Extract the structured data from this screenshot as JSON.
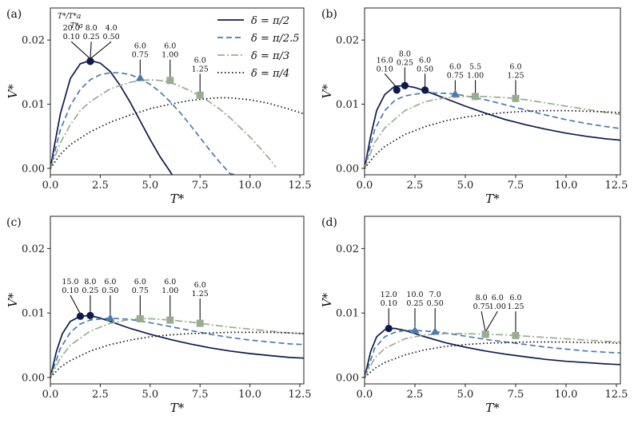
{
  "figure": {
    "legend": {
      "entries": [
        "δ = π/2",
        "δ = π/2.5",
        "δ = π/3",
        "δ = π/4"
      ],
      "key_line1": "T*/T*a",
      "key_line2": "T*a"
    }
  },
  "series_styles": [
    {
      "name": "δ = π/2",
      "color": "#0d1b4b",
      "dash": "",
      "marker": "circle"
    },
    {
      "name": "δ = π/2.5",
      "color": "#4a7bab",
      "dash": "7,4",
      "marker": "triangle"
    },
    {
      "name": "δ = π/3",
      "color": "#98ad8f",
      "dash": "9,3,2,3",
      "marker": "square"
    },
    {
      "name": "δ = π/4",
      "color": "#111111",
      "dash": "1.5,3",
      "marker": "none"
    }
  ],
  "chart_data": [
    {
      "type": "line",
      "panel_label": "(a)",
      "xlabel": "T*",
      "ylabel": "V*",
      "xlim": [
        0,
        12.7
      ],
      "ylim": [
        -0.001,
        0.025
      ],
      "xticks": [
        "0.0",
        "2.5",
        "5.0",
        "7.5",
        "10.0",
        "12.5"
      ],
      "yticks": [
        "0.00",
        "0.01",
        "0.02"
      ],
      "series": [
        {
          "name": "δ = π/2",
          "x": [
            0,
            0.2,
            0.5,
            1.0,
            1.5,
            2.0,
            2.5,
            3.0,
            3.5,
            4.0,
            4.5,
            5.0,
            5.5,
            6.0,
            6.1
          ],
          "y": [
            0,
            0.0035,
            0.0085,
            0.014,
            0.0163,
            0.0168,
            0.0164,
            0.0151,
            0.0129,
            0.0103,
            0.0074,
            0.0045,
            0.0018,
            -0.0005,
            -0.001
          ]
        },
        {
          "name": "δ = π/2.5",
          "x": [
            0,
            0.5,
            1.0,
            1.5,
            2.0,
            2.5,
            3.0,
            3.5,
            4.0,
            4.5,
            5.0,
            5.5,
            6.0,
            6.5,
            7.0,
            7.5,
            8.0,
            8.5,
            9.0,
            9.3
          ],
          "y": [
            0,
            0.006,
            0.0098,
            0.0123,
            0.0138,
            0.0146,
            0.0149,
            0.0149,
            0.0146,
            0.014,
            0.0131,
            0.0119,
            0.0104,
            0.0087,
            0.0068,
            0.0048,
            0.0028,
            0.0009,
            -0.0008,
            -0.001
          ]
        },
        {
          "name": "δ = π/3",
          "x": [
            0,
            0.5,
            1.0,
            1.5,
            2.0,
            3.0,
            4.0,
            4.5,
            5.0,
            5.5,
            6.0,
            6.5,
            7.0,
            7.5,
            8.0,
            8.5,
            9.0,
            9.5,
            10.0,
            10.5,
            11.0,
            11.3
          ],
          "y": [
            0,
            0.004,
            0.0068,
            0.009,
            0.0104,
            0.0124,
            0.0134,
            0.0137,
            0.0138,
            0.0137,
            0.0134,
            0.0128,
            0.0121,
            0.0113,
            0.0103,
            0.0092,
            0.0079,
            0.0064,
            0.0049,
            0.0032,
            0.0014,
            0.0002
          ]
        },
        {
          "name": "δ = π/4",
          "x": [
            0,
            0.5,
            1.0,
            2.0,
            3.0,
            4.0,
            5.0,
            6.0,
            7.0,
            8.0,
            8.5,
            9.0,
            10.0,
            11.0,
            12.0,
            12.7
          ],
          "y": [
            0,
            0.0022,
            0.0037,
            0.0057,
            0.0072,
            0.0083,
            0.0093,
            0.01,
            0.0106,
            0.0109,
            0.011,
            0.011,
            0.0107,
            0.0101,
            0.0092,
            0.0085
          ]
        }
      ],
      "markers": [
        {
          "series": 0,
          "x": 2.0,
          "y": 0.0167,
          "label1": "20.0",
          "label2": "0.10",
          "lx": 1.05,
          "ly": 0.02
        },
        {
          "series": 0,
          "x": 2.0,
          "y": 0.0167,
          "label1": "8.0",
          "label2": "0.25",
          "lx": 2.05,
          "ly": 0.02
        },
        {
          "series": 0,
          "x": 2.0,
          "y": 0.0167,
          "label1": "4.0",
          "label2": "0.50",
          "lx": 3.05,
          "ly": 0.02
        },
        {
          "series": 1,
          "x": 4.5,
          "y": 0.0141,
          "label1": "6.0",
          "label2": "0.75",
          "lx": 4.5,
          "ly": 0.0172
        },
        {
          "series": 2,
          "x": 6.0,
          "y": 0.0137,
          "label1": "6.0",
          "label2": "1.00",
          "lx": 6.0,
          "ly": 0.0172
        },
        {
          "series": 2,
          "x": 7.5,
          "y": 0.0114,
          "label1": "6.0",
          "label2": "1.25",
          "lx": 7.5,
          "ly": 0.015
        }
      ]
    },
    {
      "type": "line",
      "panel_label": "(b)",
      "xlabel": "T*",
      "ylabel": "V*",
      "xlim": [
        0,
        12.7
      ],
      "ylim": [
        -0.001,
        0.025
      ],
      "xticks": [
        "0.0",
        "2.5",
        "5.0",
        "7.5",
        "10.0",
        "12.5"
      ],
      "yticks": [
        "0.00",
        "0.01",
        "0.02"
      ],
      "series": [
        {
          "name": "δ = π/2",
          "x": [
            0,
            0.3,
            0.6,
            1.0,
            1.5,
            2.0,
            2.5,
            3.0,
            4.0,
            5.0,
            6.0,
            7.0,
            8.0,
            9.0,
            10.0,
            11.0,
            12.0,
            12.7
          ],
          "y": [
            0,
            0.005,
            0.009,
            0.0115,
            0.0128,
            0.0129,
            0.0126,
            0.0121,
            0.0109,
            0.0097,
            0.0086,
            0.0076,
            0.0068,
            0.0061,
            0.0055,
            0.005,
            0.0046,
            0.0044
          ]
        },
        {
          "name": "δ = π/2.5",
          "x": [
            0,
            0.5,
            1.0,
            1.5,
            2.0,
            3.0,
            4.0,
            4.5,
            5.0,
            6.0,
            7.0,
            8.0,
            9.0,
            10.0,
            11.0,
            12.0,
            12.7
          ],
          "y": [
            0,
            0.006,
            0.009,
            0.0106,
            0.0113,
            0.0118,
            0.0117,
            0.0116,
            0.0113,
            0.0107,
            0.0099,
            0.0091,
            0.0083,
            0.0076,
            0.007,
            0.0065,
            0.0062
          ]
        },
        {
          "name": "δ = π/3",
          "x": [
            0,
            0.5,
            1.0,
            2.0,
            3.0,
            4.0,
            5.0,
            5.5,
            6.0,
            7.0,
            7.5,
            8.0,
            9.0,
            10.0,
            11.0,
            12.0,
            12.7
          ],
          "y": [
            0,
            0.004,
            0.0063,
            0.009,
            0.0104,
            0.011,
            0.0112,
            0.0112,
            0.0112,
            0.011,
            0.0109,
            0.0107,
            0.0102,
            0.0097,
            0.0092,
            0.0087,
            0.0084
          ]
        },
        {
          "name": "δ = π/4",
          "x": [
            0,
            0.5,
            1.0,
            2.0,
            3.0,
            4.0,
            5.0,
            6.0,
            7.0,
            8.0,
            9.0,
            10.0,
            11.0,
            12.0,
            12.7
          ],
          "y": [
            0,
            0.002,
            0.0034,
            0.0053,
            0.0065,
            0.0074,
            0.008,
            0.0084,
            0.0087,
            0.0089,
            0.009,
            0.009,
            0.0089,
            0.0088,
            0.0087
          ]
        }
      ],
      "markers": [
        {
          "series": 0,
          "x": 1.6,
          "y": 0.0122,
          "label1": "16.0",
          "label2": "0.10",
          "lx": 1.0,
          "ly": 0.015
        },
        {
          "series": 0,
          "x": 2.0,
          "y": 0.0129,
          "label1": "8.0",
          "label2": "0.25",
          "lx": 2.0,
          "ly": 0.016
        },
        {
          "series": 0,
          "x": 3.0,
          "y": 0.0122,
          "label1": "6.0",
          "label2": "0.50",
          "lx": 3.0,
          "ly": 0.015
        },
        {
          "series": 1,
          "x": 4.5,
          "y": 0.0116,
          "label1": "6.0",
          "label2": "0.75",
          "lx": 4.5,
          "ly": 0.014
        },
        {
          "series": 2,
          "x": 5.5,
          "y": 0.0112,
          "label1": "5.5",
          "label2": "1.00",
          "lx": 5.5,
          "ly": 0.014
        },
        {
          "series": 2,
          "x": 7.5,
          "y": 0.0109,
          "label1": "6.0",
          "label2": "1.25",
          "lx": 7.5,
          "ly": 0.014
        }
      ]
    },
    {
      "type": "line",
      "panel_label": "(c)",
      "xlabel": "T*",
      "ylabel": "V*",
      "xlim": [
        0,
        12.7
      ],
      "ylim": [
        -0.001,
        0.025
      ],
      "xticks": [
        "0.0",
        "2.5",
        "5.0",
        "7.5",
        "10.0",
        "12.5"
      ],
      "yticks": [
        "0.00",
        "0.01",
        "0.02"
      ],
      "series": [
        {
          "name": "δ = π/2",
          "x": [
            0,
            0.3,
            0.6,
            1.0,
            1.5,
            2.0,
            2.5,
            3.0,
            4.0,
            5.0,
            6.0,
            7.0,
            8.0,
            9.0,
            10.0,
            11.0,
            12.0,
            12.7
          ],
          "y": [
            0,
            0.004,
            0.0068,
            0.0087,
            0.0095,
            0.0096,
            0.0092,
            0.0087,
            0.0076,
            0.0067,
            0.0059,
            0.0052,
            0.0046,
            0.0041,
            0.0037,
            0.0034,
            0.0031,
            0.003
          ]
        },
        {
          "name": "δ = π/2.5",
          "x": [
            0,
            0.5,
            1.0,
            1.5,
            2.0,
            3.0,
            4.0,
            5.0,
            6.0,
            7.0,
            8.0,
            9.0,
            10.0,
            11.0,
            12.0,
            12.7
          ],
          "y": [
            0,
            0.0045,
            0.007,
            0.0083,
            0.0089,
            0.0092,
            0.009,
            0.0085,
            0.0079,
            0.0073,
            0.0067,
            0.0062,
            0.0058,
            0.0055,
            0.0052,
            0.0051
          ]
        },
        {
          "name": "δ = π/3",
          "x": [
            0,
            0.5,
            1.0,
            2.0,
            3.0,
            4.0,
            4.5,
            5.0,
            6.0,
            7.0,
            7.5,
            8.0,
            9.0,
            10.0,
            11.0,
            12.0,
            12.7
          ],
          "y": [
            0,
            0.003,
            0.005,
            0.0072,
            0.0084,
            0.009,
            0.0091,
            0.0091,
            0.0089,
            0.0086,
            0.0084,
            0.0082,
            0.0078,
            0.0075,
            0.0072,
            0.0069,
            0.0068
          ]
        },
        {
          "name": "δ = π/4",
          "x": [
            0,
            0.5,
            1.0,
            2.0,
            3.0,
            4.0,
            5.0,
            6.0,
            7.0,
            8.0,
            9.0,
            10.0,
            11.0,
            12.0,
            12.7
          ],
          "y": [
            0,
            0.0016,
            0.0026,
            0.0041,
            0.0051,
            0.0058,
            0.0063,
            0.0066,
            0.0068,
            0.0069,
            0.007,
            0.007,
            0.007,
            0.0069,
            0.0068
          ]
        }
      ],
      "markers": [
        {
          "series": 0,
          "x": 1.5,
          "y": 0.0095,
          "label1": "15.0",
          "label2": "0.10",
          "lx": 1.0,
          "ly": 0.013
        },
        {
          "series": 0,
          "x": 2.0,
          "y": 0.0096,
          "label1": "8.0",
          "label2": "0.25",
          "lx": 2.0,
          "ly": 0.013
        },
        {
          "series": 1,
          "x": 3.0,
          "y": 0.0092,
          "label1": "6.0",
          "label2": "0.50",
          "lx": 3.0,
          "ly": 0.013
        },
        {
          "series": 2,
          "x": 4.5,
          "y": 0.0091,
          "label1": "6.0",
          "label2": "0.75",
          "lx": 4.5,
          "ly": 0.013
        },
        {
          "series": 2,
          "x": 6.0,
          "y": 0.0089,
          "label1": "6.0",
          "label2": "1.00",
          "lx": 6.0,
          "ly": 0.013
        },
        {
          "series": 2,
          "x": 7.5,
          "y": 0.0084,
          "label1": "6.0",
          "label2": "1.25",
          "lx": 7.5,
          "ly": 0.0125
        }
      ]
    },
    {
      "type": "line",
      "panel_label": "(d)",
      "xlabel": "T*",
      "ylabel": "V*",
      "xlim": [
        0,
        12.7
      ],
      "ylim": [
        -0.001,
        0.025
      ],
      "xticks": [
        "0.0",
        "2.5",
        "5.0",
        "7.5",
        "10.0",
        "12.5"
      ],
      "yticks": [
        "0.00",
        "0.01",
        "0.02"
      ],
      "series": [
        {
          "name": "δ = π/2",
          "x": [
            0,
            0.3,
            0.6,
            1.0,
            1.2,
            1.5,
            2.0,
            2.5,
            3.0,
            4.0,
            5.0,
            6.0,
            7.0,
            8.0,
            9.0,
            10.0,
            11.0,
            12.0,
            12.7
          ],
          "y": [
            0,
            0.004,
            0.0063,
            0.0074,
            0.0076,
            0.0076,
            0.0073,
            0.0068,
            0.0063,
            0.0054,
            0.0047,
            0.0041,
            0.0036,
            0.0032,
            0.0028,
            0.0025,
            0.0023,
            0.0021,
            0.002
          ]
        },
        {
          "name": "δ = π/2.5",
          "x": [
            0,
            0.5,
            1.0,
            1.5,
            2.0,
            2.5,
            3.0,
            3.5,
            4.0,
            5.0,
            6.0,
            7.0,
            8.0,
            9.0,
            10.0,
            11.0,
            12.0,
            12.7
          ],
          "y": [
            0,
            0.0045,
            0.0063,
            0.007,
            0.0073,
            0.0073,
            0.0072,
            0.0071,
            0.0069,
            0.0064,
            0.0059,
            0.0055,
            0.0051,
            0.0047,
            0.0044,
            0.0041,
            0.0039,
            0.0038
          ]
        },
        {
          "name": "δ = π/3",
          "x": [
            0,
            0.5,
            1.0,
            2.0,
            3.0,
            4.0,
            5.0,
            6.0,
            7.0,
            7.5,
            8.0,
            9.0,
            10.0,
            11.0,
            12.0,
            12.7
          ],
          "y": [
            0,
            0.003,
            0.0045,
            0.006,
            0.0066,
            0.0068,
            0.0068,
            0.0067,
            0.0066,
            0.0065,
            0.0064,
            0.0062,
            0.006,
            0.0058,
            0.0056,
            0.0055
          ]
        },
        {
          "name": "δ = π/4",
          "x": [
            0,
            0.5,
            1.0,
            2.0,
            3.0,
            4.0,
            5.0,
            6.0,
            7.0,
            8.0,
            9.0,
            10.0,
            11.0,
            12.0,
            12.7
          ],
          "y": [
            0,
            0.0014,
            0.0023,
            0.0035,
            0.0043,
            0.0048,
            0.0051,
            0.0053,
            0.0054,
            0.0055,
            0.0055,
            0.0055,
            0.0054,
            0.0054,
            0.0053
          ]
        }
      ],
      "markers": [
        {
          "series": 0,
          "x": 1.2,
          "y": 0.0076,
          "label1": "12.0",
          "label2": "0.10",
          "lx": 1.2,
          "ly": 0.011
        },
        {
          "series": 1,
          "x": 2.5,
          "y": 0.0073,
          "label1": "10.0",
          "label2": "0.25",
          "lx": 2.5,
          "ly": 0.011
        },
        {
          "series": 1,
          "x": 3.5,
          "y": 0.0071,
          "label1": "7.0",
          "label2": "0.50",
          "lx": 3.5,
          "ly": 0.011
        },
        {
          "series": 2,
          "x": 6.0,
          "y": 0.0067,
          "label1": "8.0",
          "label2": "0.75",
          "lx": 5.8,
          "ly": 0.0105
        },
        {
          "series": 2,
          "x": 6.0,
          "y": 0.0067,
          "label1": "6.0",
          "label2": "1.00",
          "lx": 6.6,
          "ly": 0.0105
        },
        {
          "series": 2,
          "x": 7.5,
          "y": 0.0065,
          "label1": "6.0",
          "label2": "1.25",
          "lx": 7.5,
          "ly": 0.0105
        }
      ]
    }
  ]
}
